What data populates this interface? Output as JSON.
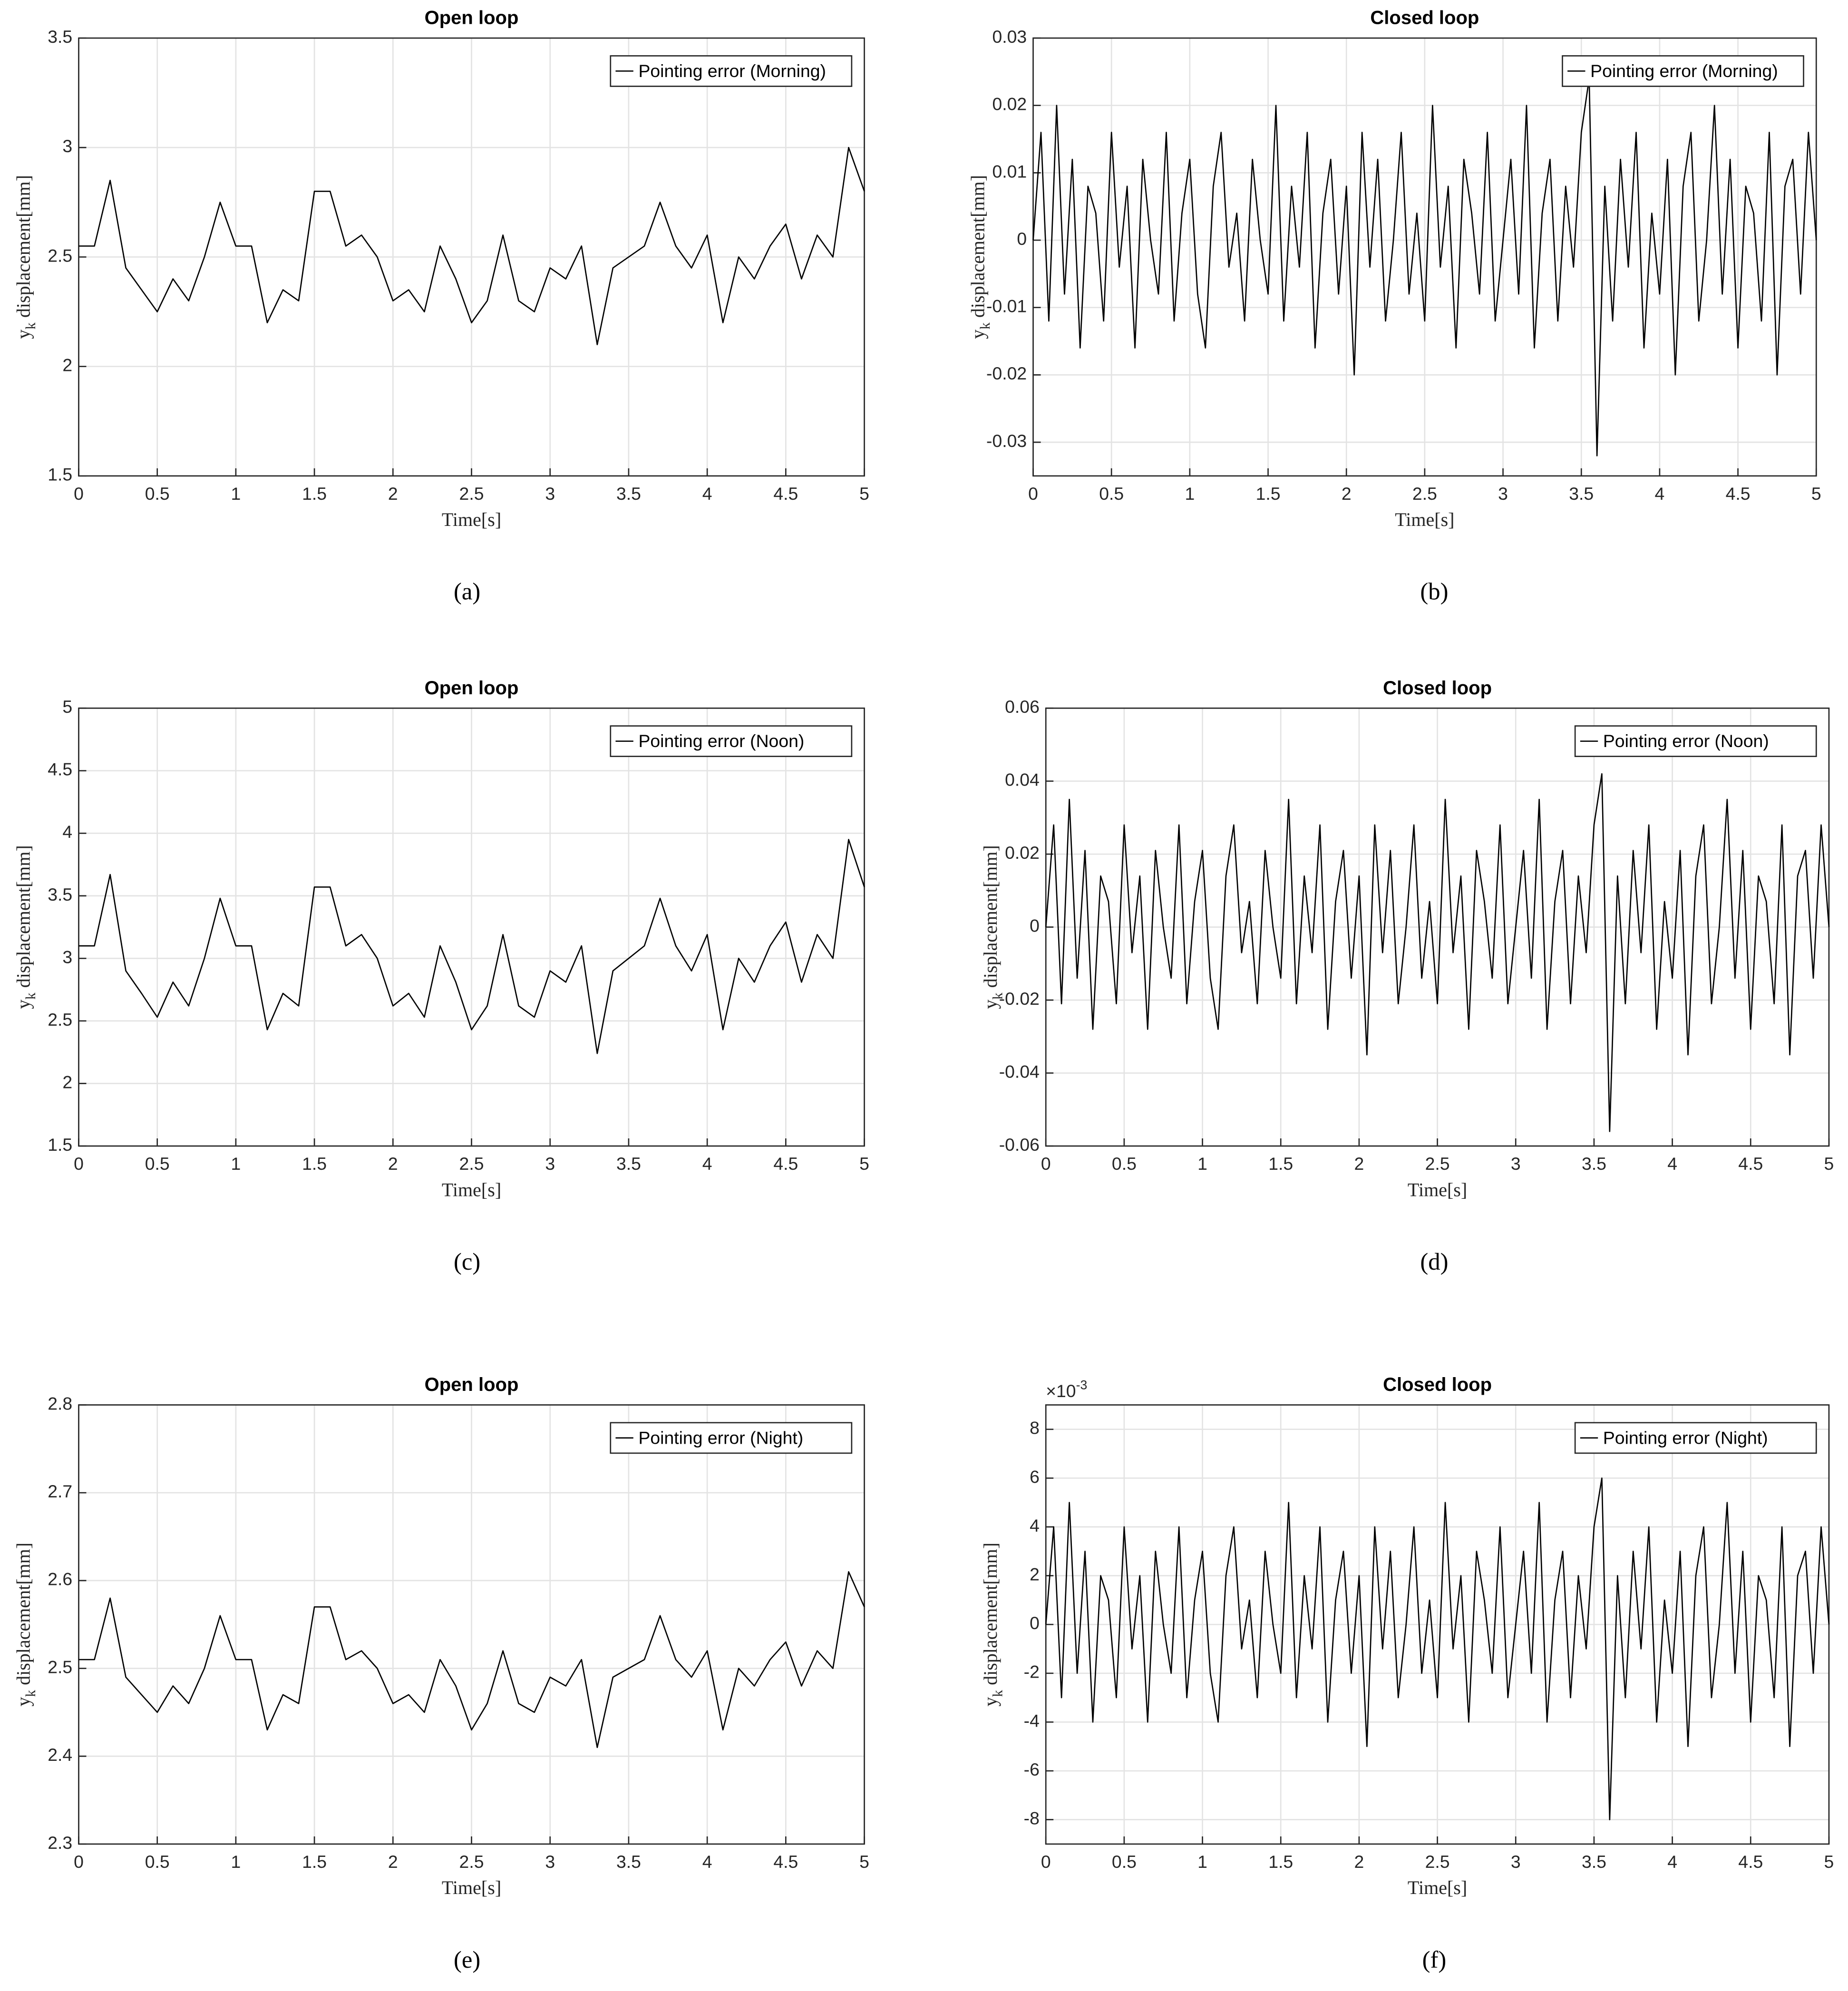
{
  "chart_data": [
    {
      "type": "line",
      "title": "Open loop",
      "xlabel": "Time[s]",
      "ylabel": {
        "text": "y",
        "subscript": "k",
        "rest": " displacement[mm]"
      },
      "panel_label": "(a)",
      "x": [
        0,
        0.1,
        0.2,
        0.3,
        0.4,
        0.5,
        0.6,
        0.7,
        0.8,
        0.9,
        1,
        1.1,
        1.2,
        1.3,
        1.4,
        1.5,
        1.6,
        1.7,
        1.8,
        1.9,
        2,
        2.1,
        2.2,
        2.3,
        2.4,
        2.5,
        2.6,
        2.7,
        2.8,
        2.9,
        3,
        3.1,
        3.2,
        3.3,
        3.4,
        3.5,
        3.6,
        3.7,
        3.8,
        3.9,
        4,
        4.1,
        4.2,
        4.3,
        4.4,
        4.5,
        4.6,
        4.7,
        4.8,
        4.9,
        5
      ],
      "series": [
        {
          "name": "Pointing error (Morning)",
          "color": "#000000",
          "values": [
            2.55,
            2.55,
            2.85,
            2.45,
            2.35,
            2.25,
            2.4,
            2.3,
            2.5,
            2.75,
            2.55,
            2.55,
            2.2,
            2.35,
            2.3,
            2.8,
            2.8,
            2.55,
            2.6,
            2.5,
            2.3,
            2.35,
            2.25,
            2.55,
            2.4,
            2.2,
            2.3,
            2.6,
            2.3,
            2.25,
            2.45,
            2.4,
            2.55,
            2.1,
            2.45,
            2.5,
            2.55,
            2.75,
            2.55,
            2.45,
            2.6,
            2.2,
            2.5,
            2.4,
            2.55,
            2.65,
            2.4,
            2.6,
            2.5,
            3.0,
            2.8
          ]
        }
      ],
      "xlim": [
        0,
        5
      ],
      "ylim": [
        1.5,
        3.5
      ],
      "xticks": [
        0,
        0.5,
        1,
        1.5,
        2,
        2.5,
        3,
        3.5,
        4,
        4.5,
        5
      ],
      "yticks": [
        1.5,
        2,
        2.5,
        3,
        3.5
      ],
      "grid": true,
      "legend": "upper right"
    },
    {
      "type": "line",
      "title": "Closed loop",
      "xlabel": "Time[s]",
      "ylabel": {
        "text": "y",
        "subscript": "k",
        "rest": " displacement[mm]"
      },
      "panel_label": "(b)",
      "x": [
        0,
        0.05,
        0.1,
        0.15,
        0.2,
        0.25,
        0.3,
        0.35,
        0.4,
        0.45,
        0.5,
        0.55,
        0.6,
        0.65,
        0.7,
        0.75,
        0.8,
        0.85,
        0.9,
        0.95,
        1,
        1.05,
        1.1,
        1.15,
        1.2,
        1.25,
        1.3,
        1.35,
        1.4,
        1.45,
        1.5,
        1.55,
        1.6,
        1.65,
        1.7,
        1.75,
        1.8,
        1.85,
        1.9,
        1.95,
        2,
        2.05,
        2.1,
        2.15,
        2.2,
        2.25,
        2.3,
        2.35,
        2.4,
        2.45,
        2.5,
        2.55,
        2.6,
        2.65,
        2.7,
        2.75,
        2.8,
        2.85,
        2.9,
        2.95,
        3,
        3.05,
        3.1,
        3.15,
        3.2,
        3.25,
        3.3,
        3.35,
        3.4,
        3.45,
        3.5,
        3.55,
        3.6,
        3.65,
        3.7,
        3.75,
        3.8,
        3.85,
        3.9,
        3.95,
        4,
        4.05,
        4.1,
        4.15,
        4.2,
        4.25,
        4.3,
        4.35,
        4.4,
        4.45,
        4.5,
        4.55,
        4.6,
        4.65,
        4.7,
        4.75,
        4.8,
        4.85,
        4.9,
        4.95,
        5
      ],
      "series": [
        {
          "name": "Pointing error (Morning)",
          "color": "#000000",
          "values": [
            0,
            0.016,
            -0.012,
            0.02,
            -0.008,
            0.012,
            -0.016,
            0.008,
            0.004,
            -0.012,
            0.016,
            -0.004,
            0.008,
            -0.016,
            0.012,
            0,
            -0.008,
            0.016,
            -0.012,
            0.004,
            0.012,
            -0.008,
            -0.016,
            0.008,
            0.016,
            -0.004,
            0.004,
            -0.012,
            0.012,
            0,
            -0.008,
            0.02,
            -0.012,
            0.008,
            -0.004,
            0.016,
            -0.016,
            0.004,
            0.012,
            -0.008,
            0.008,
            -0.02,
            0.016,
            -0.004,
            0.012,
            -0.012,
            0,
            0.016,
            -0.008,
            0.004,
            -0.012,
            0.02,
            -0.004,
            0.008,
            -0.016,
            0.012,
            0.004,
            -0.008,
            0.016,
            -0.012,
            0,
            0.012,
            -0.008,
            0.02,
            -0.016,
            0.004,
            0.012,
            -0.012,
            0.008,
            -0.004,
            0.016,
            0.024,
            -0.032,
            0.008,
            -0.012,
            0.012,
            -0.004,
            0.016,
            -0.016,
            0.004,
            -0.008,
            0.012,
            -0.02,
            0.008,
            0.016,
            -0.012,
            0,
            0.02,
            -0.008,
            0.012,
            -0.016,
            0.008,
            0.004,
            -0.012,
            0.016,
            -0.02,
            0.008,
            0.012,
            -0.008,
            0.016,
            0
          ]
        }
      ],
      "xlim": [
        0,
        5
      ],
      "ylim": [
        -0.035,
        0.03
      ],
      "xticks": [
        0,
        0.5,
        1,
        1.5,
        2,
        2.5,
        3,
        3.5,
        4,
        4.5,
        5
      ],
      "yticks": [
        -0.03,
        -0.02,
        -0.01,
        0,
        0.01,
        0.02,
        0.03
      ],
      "grid": true,
      "legend": "upper right"
    },
    {
      "type": "line",
      "title": "Open loop",
      "xlabel": "Time[s]",
      "ylabel": {
        "text": "y",
        "subscript": "k",
        "rest": " displacement[mm]"
      },
      "panel_label": "(c)",
      "x": [
        0,
        0.1,
        0.2,
        0.3,
        0.4,
        0.5,
        0.6,
        0.7,
        0.8,
        0.9,
        1,
        1.1,
        1.2,
        1.3,
        1.4,
        1.5,
        1.6,
        1.7,
        1.8,
        1.9,
        2,
        2.1,
        2.2,
        2.3,
        2.4,
        2.5,
        2.6,
        2.7,
        2.8,
        2.9,
        3,
        3.1,
        3.2,
        3.3,
        3.4,
        3.5,
        3.6,
        3.7,
        3.8,
        3.9,
        4,
        4.1,
        4.2,
        4.3,
        4.4,
        4.5,
        4.6,
        4.7,
        4.8,
        4.9,
        5
      ],
      "series": [
        {
          "name": "Pointing error (Noon)",
          "color": "#000000",
          "values": [
            3.1,
            3.1,
            3.67,
            2.9,
            2.72,
            2.53,
            2.81,
            2.62,
            3.0,
            3.48,
            3.1,
            3.1,
            2.43,
            2.72,
            2.62,
            3.57,
            3.57,
            3.1,
            3.19,
            3.0,
            2.62,
            2.72,
            2.53,
            3.1,
            2.81,
            2.43,
            2.62,
            3.19,
            2.62,
            2.53,
            2.9,
            2.81,
            3.1,
            2.24,
            2.9,
            3.0,
            3.1,
            3.48,
            3.1,
            2.9,
            3.19,
            2.43,
            3.0,
            2.81,
            3.1,
            3.29,
            2.81,
            3.19,
            3.0,
            3.95,
            3.57
          ]
        }
      ],
      "xlim": [
        0,
        5
      ],
      "ylim": [
        1.5,
        5
      ],
      "xticks": [
        0,
        0.5,
        1,
        1.5,
        2,
        2.5,
        3,
        3.5,
        4,
        4.5,
        5
      ],
      "yticks": [
        1.5,
        2,
        2.5,
        3,
        3.5,
        4,
        4.5,
        5
      ],
      "grid": true,
      "legend": "upper right"
    },
    {
      "type": "line",
      "title": "Closed loop",
      "xlabel": "Time[s]",
      "ylabel": {
        "text": "y",
        "subscript": "k",
        "rest": " displacement[mm]"
      },
      "panel_label": "(d)",
      "x": [
        0,
        0.05,
        0.1,
        0.15,
        0.2,
        0.25,
        0.3,
        0.35,
        0.4,
        0.45,
        0.5,
        0.55,
        0.6,
        0.65,
        0.7,
        0.75,
        0.8,
        0.85,
        0.9,
        0.95,
        1,
        1.05,
        1.1,
        1.15,
        1.2,
        1.25,
        1.3,
        1.35,
        1.4,
        1.45,
        1.5,
        1.55,
        1.6,
        1.65,
        1.7,
        1.75,
        1.8,
        1.85,
        1.9,
        1.95,
        2,
        2.05,
        2.1,
        2.15,
        2.2,
        2.25,
        2.3,
        2.35,
        2.4,
        2.45,
        2.5,
        2.55,
        2.6,
        2.65,
        2.7,
        2.75,
        2.8,
        2.85,
        2.9,
        2.95,
        3,
        3.05,
        3.1,
        3.15,
        3.2,
        3.25,
        3.3,
        3.35,
        3.4,
        3.45,
        3.5,
        3.55,
        3.6,
        3.65,
        3.7,
        3.75,
        3.8,
        3.85,
        3.9,
        3.95,
        4,
        4.05,
        4.1,
        4.15,
        4.2,
        4.25,
        4.3,
        4.35,
        4.4,
        4.45,
        4.5,
        4.55,
        4.6,
        4.65,
        4.7,
        4.75,
        4.8,
        4.85,
        4.9,
        4.95,
        5
      ],
      "series": [
        {
          "name": "Pointing error (Noon)",
          "color": "#000000",
          "values": [
            0,
            0.028,
            -0.021,
            0.035,
            -0.014,
            0.021,
            -0.028,
            0.014,
            0.007,
            -0.021,
            0.028,
            -0.007,
            0.014,
            -0.028,
            0.021,
            0,
            -0.014,
            0.028,
            -0.021,
            0.007,
            0.021,
            -0.014,
            -0.028,
            0.014,
            0.028,
            -0.007,
            0.007,
            -0.021,
            0.021,
            0,
            -0.014,
            0.035,
            -0.021,
            0.014,
            -0.007,
            0.028,
            -0.028,
            0.007,
            0.021,
            -0.014,
            0.014,
            -0.035,
            0.028,
            -0.007,
            0.021,
            -0.021,
            0,
            0.028,
            -0.014,
            0.007,
            -0.021,
            0.035,
            -0.007,
            0.014,
            -0.028,
            0.021,
            0.007,
            -0.014,
            0.028,
            -0.021,
            0,
            0.021,
            -0.014,
            0.035,
            -0.028,
            0.007,
            0.021,
            -0.021,
            0.014,
            -0.007,
            0.028,
            0.042,
            -0.056,
            0.014,
            -0.021,
            0.021,
            -0.007,
            0.028,
            -0.028,
            0.007,
            -0.014,
            0.021,
            -0.035,
            0.014,
            0.028,
            -0.021,
            0,
            0.035,
            -0.014,
            0.021,
            -0.028,
            0.014,
            0.007,
            -0.021,
            0.028,
            -0.035,
            0.014,
            0.021,
            -0.014,
            0.028,
            0
          ]
        }
      ],
      "xlim": [
        0,
        5
      ],
      "ylim": [
        -0.06,
        0.06
      ],
      "xticks": [
        0,
        0.5,
        1,
        1.5,
        2,
        2.5,
        3,
        3.5,
        4,
        4.5,
        5
      ],
      "yticks": [
        -0.06,
        -0.04,
        -0.02,
        0,
        0.02,
        0.04,
        0.06
      ],
      "grid": true,
      "legend": "upper right"
    },
    {
      "type": "line",
      "title": "Open loop",
      "xlabel": "Time[s]",
      "ylabel": {
        "text": "y",
        "subscript": "k",
        "rest": " displacement[mm]"
      },
      "panel_label": "(e)",
      "x": [
        0,
        0.1,
        0.2,
        0.3,
        0.4,
        0.5,
        0.6,
        0.7,
        0.8,
        0.9,
        1,
        1.1,
        1.2,
        1.3,
        1.4,
        1.5,
        1.6,
        1.7,
        1.8,
        1.9,
        2,
        2.1,
        2.2,
        2.3,
        2.4,
        2.5,
        2.6,
        2.7,
        2.8,
        2.9,
        3,
        3.1,
        3.2,
        3.3,
        3.4,
        3.5,
        3.6,
        3.7,
        3.8,
        3.9,
        4,
        4.1,
        4.2,
        4.3,
        4.4,
        4.5,
        4.6,
        4.7,
        4.8,
        4.9,
        5
      ],
      "series": [
        {
          "name": "Pointing error (Night)",
          "color": "#000000",
          "values": [
            2.51,
            2.51,
            2.58,
            2.49,
            2.47,
            2.45,
            2.48,
            2.46,
            2.5,
            2.56,
            2.51,
            2.51,
            2.43,
            2.47,
            2.46,
            2.57,
            2.57,
            2.51,
            2.52,
            2.5,
            2.46,
            2.47,
            2.45,
            2.51,
            2.48,
            2.43,
            2.46,
            2.52,
            2.46,
            2.45,
            2.49,
            2.48,
            2.51,
            2.41,
            2.49,
            2.5,
            2.51,
            2.56,
            2.51,
            2.49,
            2.52,
            2.43,
            2.5,
            2.48,
            2.51,
            2.53,
            2.48,
            2.52,
            2.5,
            2.61,
            2.57
          ]
        }
      ],
      "xlim": [
        0,
        5
      ],
      "ylim": [
        2.3,
        2.8
      ],
      "xticks": [
        0,
        0.5,
        1,
        1.5,
        2,
        2.5,
        3,
        3.5,
        4,
        4.5,
        5
      ],
      "yticks": [
        2.3,
        2.4,
        2.5,
        2.6,
        2.7,
        2.8
      ],
      "grid": true,
      "legend": "upper right"
    },
    {
      "type": "line",
      "title": "Closed loop",
      "xlabel": "Time[s]",
      "ylabel": {
        "text": "y",
        "subscript": "k",
        "rest": " displacement[mm]"
      },
      "panel_label": "(f)",
      "y_multiplier": {
        "base": "×10",
        "exponent": "-3"
      },
      "x": [
        0,
        0.05,
        0.1,
        0.15,
        0.2,
        0.25,
        0.3,
        0.35,
        0.4,
        0.45,
        0.5,
        0.55,
        0.6,
        0.65,
        0.7,
        0.75,
        0.8,
        0.85,
        0.9,
        0.95,
        1,
        1.05,
        1.1,
        1.15,
        1.2,
        1.25,
        1.3,
        1.35,
        1.4,
        1.45,
        1.5,
        1.55,
        1.6,
        1.65,
        1.7,
        1.75,
        1.8,
        1.85,
        1.9,
        1.95,
        2,
        2.05,
        2.1,
        2.15,
        2.2,
        2.25,
        2.3,
        2.35,
        2.4,
        2.45,
        2.5,
        2.55,
        2.6,
        2.65,
        2.7,
        2.75,
        2.8,
        2.85,
        2.9,
        2.95,
        3,
        3.05,
        3.1,
        3.15,
        3.2,
        3.25,
        3.3,
        3.35,
        3.4,
        3.45,
        3.5,
        3.55,
        3.6,
        3.65,
        3.7,
        3.75,
        3.8,
        3.85,
        3.9,
        3.95,
        4,
        4.05,
        4.1,
        4.15,
        4.2,
        4.25,
        4.3,
        4.35,
        4.4,
        4.45,
        4.5,
        4.55,
        4.6,
        4.65,
        4.7,
        4.75,
        4.8,
        4.85,
        4.9,
        4.95,
        5
      ],
      "series": [
        {
          "name": "Pointing error (Night)",
          "color": "#000000",
          "values": [
            0,
            4,
            -3,
            5,
            -2,
            3,
            -4,
            2,
            1,
            -3,
            4,
            -1,
            2,
            -4,
            3,
            0,
            -2,
            4,
            -3,
            1,
            3,
            -2,
            -4,
            2,
            4,
            -1,
            1,
            -3,
            3,
            0,
            -2,
            5,
            -3,
            2,
            -1,
            4,
            -4,
            1,
            3,
            -2,
            2,
            -5,
            4,
            -1,
            3,
            -3,
            0,
            4,
            -2,
            1,
            -3,
            5,
            -1,
            2,
            -4,
            3,
            1,
            -2,
            4,
            -3,
            0,
            3,
            -2,
            5,
            -4,
            1,
            3,
            -3,
            2,
            -1,
            4,
            6,
            -8,
            2,
            -3,
            3,
            -1,
            4,
            -4,
            1,
            -2,
            3,
            -5,
            2,
            4,
            -3,
            0,
            5,
            -2,
            3,
            -4,
            2,
            1,
            -3,
            4,
            -5,
            2,
            3,
            -2,
            4,
            0
          ]
        }
      ],
      "xlim": [
        0,
        5
      ],
      "ylim": [
        -9,
        9
      ],
      "xticks": [
        0,
        0.5,
        1,
        1.5,
        2,
        2.5,
        3,
        3.5,
        4,
        4.5,
        5
      ],
      "yticks": [
        -8,
        -6,
        -4,
        -2,
        0,
        2,
        4,
        6,
        8
      ],
      "grid": true,
      "legend": "upper right"
    }
  ]
}
